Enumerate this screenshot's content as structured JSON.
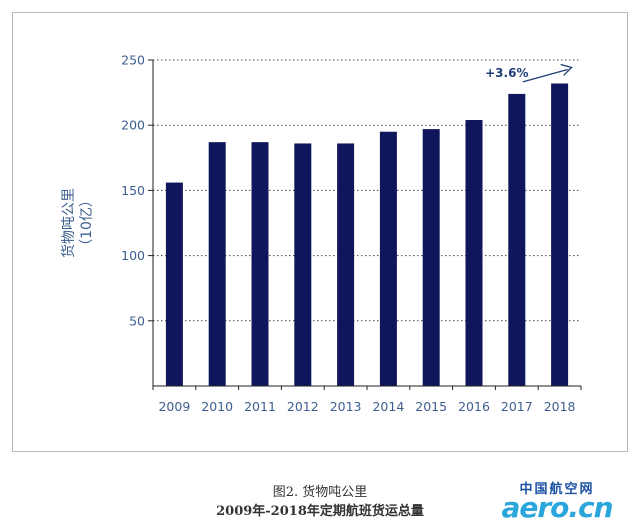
{
  "chart_data": {
    "type": "bar",
    "categories": [
      "2009",
      "2010",
      "2011",
      "2012",
      "2013",
      "2014",
      "2015",
      "2016",
      "2017",
      "2018"
    ],
    "values": [
      156,
      187,
      187,
      186,
      186,
      195,
      197,
      204,
      224,
      232
    ],
    "ylabel": "货物吨公里\n（10亿）",
    "ylim": [
      0,
      250
    ],
    "yticks": [
      50,
      100,
      150,
      200,
      250
    ],
    "grid": true,
    "annotation": {
      "text": "+3.6%",
      "from_category": "2017",
      "to_category": "2018"
    },
    "colors": {
      "bar": "#10165c",
      "axis_text": "#3d5f8f",
      "annotation": "#1f3f78",
      "grid": "#444444"
    }
  },
  "caption": {
    "line1": "图2. 货物吨公里",
    "line2": "2009年-2018年定期航班货运总量"
  },
  "watermark": {
    "top": "中国航空网",
    "bottom": "aero.cn",
    "colors": {
      "top": "#1c52a3",
      "bottom": "#2aa6dd"
    }
  }
}
